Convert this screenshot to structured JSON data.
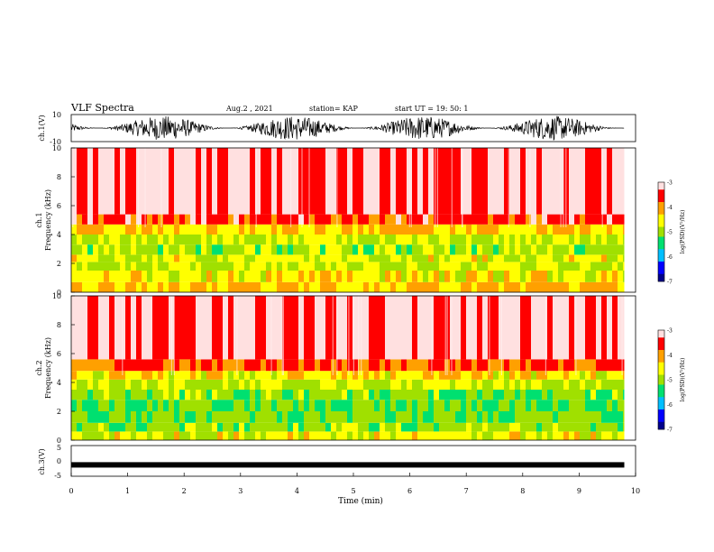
{
  "header": {
    "title": "VLF Spectra",
    "date": "Aug.2 , 2021",
    "station": "station= KAP",
    "start": "start UT = 19: 50: 1"
  },
  "colors": {
    "colormap": [
      "#00008b",
      "#0000ff",
      "#00bfff",
      "#00e070",
      "#a0e000",
      "#ffff00",
      "#ffa000",
      "#ff0000",
      "#ffe0e0"
    ],
    "text": "#000000",
    "background": "#ffffff"
  },
  "chart_data": [
    {
      "type": "line",
      "panel": "ch1-waveform",
      "ylabel": "ch.1(V)",
      "ylim": [
        -10,
        10
      ],
      "yticks": [
        "10",
        "-10"
      ],
      "xlim": [
        0,
        10
      ],
      "description_values": {
        "approx_min": -10,
        "approx_max": 10
      }
    },
    {
      "type": "heatmap",
      "panel": "ch1-spectrogram",
      "ylabel": "ch.1\nFrequency (kHz)",
      "ylim": [
        0,
        10
      ],
      "yticks": [
        "0",
        "2",
        "4",
        "6",
        "8",
        "10"
      ],
      "xlim": [
        0,
        10
      ],
      "band_edges_khz": [
        0.7,
        1.5,
        2.1,
        2.6,
        3.3,
        4.0,
        4.7,
        5.4,
        10
      ],
      "band_levels": [
        -4.2,
        -4.5,
        -4.8,
        -4.6,
        -4.9,
        -4.7,
        -4.3,
        -3.6,
        -3.2
      ],
      "colorbar": {
        "label": "log(PSD)(V²/Hz)",
        "ticks": [
          "-3",
          "-4",
          "-5",
          "-6",
          "-7"
        ],
        "range": [
          -7,
          -3
        ]
      }
    },
    {
      "type": "heatmap",
      "panel": "ch2-spectrogram",
      "ylabel": "ch.2\nFrequency (kHz)",
      "ylim": [
        0,
        10
      ],
      "yticks": [
        "0",
        "2",
        "4",
        "6",
        "8",
        "10"
      ],
      "xlim": [
        0,
        10
      ],
      "band_edges_khz": [
        0.6,
        1.2,
        2.0,
        2.8,
        3.5,
        4.2,
        4.8,
        5.6,
        10
      ],
      "band_levels": [
        -4.6,
        -5.0,
        -5.2,
        -5.3,
        -5.1,
        -4.8,
        -4.4,
        -3.7,
        -3.2
      ],
      "colorbar": {
        "label": "log(PSD)(V²/Hz)",
        "ticks": [
          "-3",
          "-4",
          "-5",
          "-6",
          "-7"
        ],
        "range": [
          -7,
          -3
        ]
      }
    },
    {
      "type": "line",
      "panel": "ch3-waveform",
      "ylabel": "ch.3(V)",
      "ylim": [
        -5,
        5
      ],
      "yticks": [
        "5",
        "0",
        "-5"
      ],
      "xlim": [
        0,
        10
      ],
      "xlabel": "Time (min)",
      "xticks": [
        "0",
        "1",
        "2",
        "3",
        "4",
        "5",
        "6",
        "7",
        "8",
        "9",
        "10"
      ],
      "description_values": {
        "level": -1.3
      }
    }
  ]
}
